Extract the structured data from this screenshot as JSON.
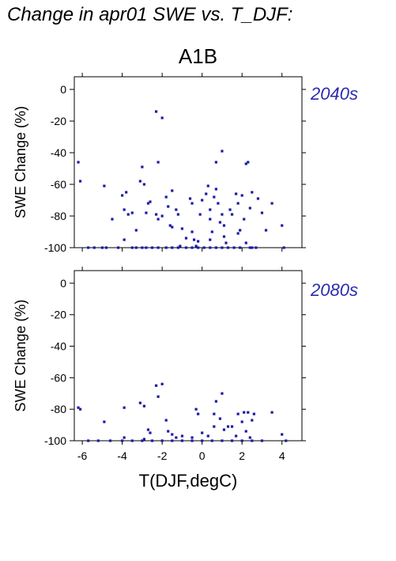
{
  "page": {
    "title": "Change in apr01 SWE vs. T_DJF:",
    "scenario": "A1B"
  },
  "chart_data": [
    {
      "type": "scatter",
      "panel_label": "2040s",
      "xlabel": "",
      "ylabel": "SWE Change (%)",
      "xlim": [
        -6.4,
        5.0
      ],
      "ylim": [
        -100,
        8
      ],
      "xticks": [
        -6,
        -4,
        -2,
        0,
        2,
        4
      ],
      "yticks": [
        0,
        -20,
        -40,
        -60,
        -80,
        -100
      ],
      "marker_color": "#1a1aa6",
      "points": [
        [
          -6.2,
          -46
        ],
        [
          -6.1,
          -58
        ],
        [
          -4.9,
          -61
        ],
        [
          -4.5,
          -82
        ],
        [
          -4.0,
          -67
        ],
        [
          -3.8,
          -65
        ],
        [
          -3.9,
          -76
        ],
        [
          -3.7,
          -79
        ],
        [
          -3.9,
          -95
        ],
        [
          -3.5,
          -78
        ],
        [
          -3.3,
          -89
        ],
        [
          -3.1,
          -58
        ],
        [
          -3.0,
          -49
        ],
        [
          -2.9,
          -60
        ],
        [
          -2.7,
          -72
        ],
        [
          -2.6,
          -71
        ],
        [
          -2.8,
          -78
        ],
        [
          -2.3,
          -14
        ],
        [
          -2.2,
          -46
        ],
        [
          -2.0,
          -18
        ],
        [
          -2.3,
          -79
        ],
        [
          -2.2,
          -82
        ],
        [
          -2.0,
          -80
        ],
        [
          -1.8,
          -68
        ],
        [
          -1.7,
          -74
        ],
        [
          -1.6,
          -86
        ],
        [
          -1.5,
          -87
        ],
        [
          -1.5,
          -64
        ],
        [
          -1.3,
          -76
        ],
        [
          -1.2,
          -79
        ],
        [
          -1.0,
          -88
        ],
        [
          -1.1,
          -99
        ],
        [
          -0.8,
          -94
        ],
        [
          -0.6,
          -69
        ],
        [
          -0.5,
          -72
        ],
        [
          -0.5,
          -90
        ],
        [
          -0.4,
          -95
        ],
        [
          -0.2,
          -96
        ],
        [
          -0.3,
          -99
        ],
        [
          -0.1,
          -79
        ],
        [
          0.0,
          -70
        ],
        [
          0.2,
          -66
        ],
        [
          0.3,
          -61
        ],
        [
          0.4,
          -76
        ],
        [
          0.4,
          -82
        ],
        [
          0.5,
          -90
        ],
        [
          0.4,
          -95
        ],
        [
          0.6,
          -68
        ],
        [
          0.7,
          -46
        ],
        [
          0.7,
          -63
        ],
        [
          0.8,
          -72
        ],
        [
          0.9,
          -84
        ],
        [
          1.0,
          -39
        ],
        [
          1.0,
          -79
        ],
        [
          1.1,
          -86
        ],
        [
          1.1,
          -93
        ],
        [
          1.2,
          -97
        ],
        [
          1.4,
          -76
        ],
        [
          1.5,
          -79
        ],
        [
          1.7,
          -66
        ],
        [
          1.8,
          -72
        ],
        [
          1.8,
          -91
        ],
        [
          1.9,
          -89
        ],
        [
          2.0,
          -67
        ],
        [
          2.1,
          -82
        ],
        [
          2.2,
          -97
        ],
        [
          2.2,
          -47
        ],
        [
          2.3,
          -46
        ],
        [
          2.4,
          -75
        ],
        [
          2.5,
          -65
        ],
        [
          2.5,
          -100
        ],
        [
          2.8,
          -69
        ],
        [
          3.0,
          -78
        ],
        [
          3.2,
          -89
        ],
        [
          3.5,
          -72
        ],
        [
          4.0,
          -86
        ],
        [
          4.1,
          -100
        ],
        [
          -5.7,
          -100
        ],
        [
          -5.4,
          -100
        ],
        [
          -5.0,
          -100
        ],
        [
          -4.8,
          -100
        ],
        [
          -4.2,
          -100
        ],
        [
          -3.5,
          -100
        ],
        [
          -3.3,
          -100
        ],
        [
          -3.0,
          -100
        ],
        [
          -2.8,
          -100
        ],
        [
          -2.5,
          -100
        ],
        [
          -2.2,
          -100
        ],
        [
          -1.8,
          -100
        ],
        [
          -1.5,
          -100
        ],
        [
          -1.2,
          -100
        ],
        [
          -0.8,
          -100
        ],
        [
          -0.5,
          -100
        ],
        [
          -0.2,
          -100
        ],
        [
          0.1,
          -100
        ],
        [
          0.4,
          -100
        ],
        [
          0.7,
          -100
        ],
        [
          1.0,
          -100
        ],
        [
          1.3,
          -100
        ],
        [
          1.6,
          -100
        ],
        [
          1.9,
          -100
        ],
        [
          2.4,
          -100
        ],
        [
          2.7,
          -100
        ]
      ]
    },
    {
      "type": "scatter",
      "panel_label": "2080s",
      "xlabel": "T(DJF,degC)",
      "ylabel": "SWE Change (%)",
      "xlim": [
        -6.4,
        5.0
      ],
      "ylim": [
        -100,
        8
      ],
      "xticks": [
        -6,
        -4,
        -2,
        0,
        2,
        4
      ],
      "yticks": [
        0,
        -20,
        -40,
        -60,
        -80,
        -100
      ],
      "marker_color": "#1a1aa6",
      "points": [
        [
          -6.2,
          -79
        ],
        [
          -6.1,
          -80
        ],
        [
          -4.9,
          -88
        ],
        [
          -3.9,
          -79
        ],
        [
          -3.9,
          -98
        ],
        [
          -3.1,
          -76
        ],
        [
          -2.9,
          -78
        ],
        [
          -2.9,
          -99
        ],
        [
          -2.7,
          -93
        ],
        [
          -2.3,
          -65
        ],
        [
          -2.2,
          -72
        ],
        [
          -2.0,
          -64
        ],
        [
          -2.6,
          -95
        ],
        [
          -1.8,
          -87
        ],
        [
          -1.7,
          -94
        ],
        [
          -1.5,
          -96
        ],
        [
          -1.3,
          -98
        ],
        [
          -1.0,
          -97
        ],
        [
          -0.5,
          -98
        ],
        [
          -0.3,
          -80
        ],
        [
          -0.2,
          -83
        ],
        [
          0.0,
          -95
        ],
        [
          0.3,
          -97
        ],
        [
          0.6,
          -91
        ],
        [
          0.6,
          -83
        ],
        [
          0.7,
          -75
        ],
        [
          0.9,
          -86
        ],
        [
          1.0,
          -70
        ],
        [
          1.1,
          -93
        ],
        [
          1.3,
          -91
        ],
        [
          1.5,
          -91
        ],
        [
          1.7,
          -97
        ],
        [
          1.8,
          -83
        ],
        [
          2.0,
          -88
        ],
        [
          2.1,
          -82
        ],
        [
          2.2,
          -94
        ],
        [
          2.3,
          -82
        ],
        [
          2.4,
          -98
        ],
        [
          2.5,
          -87
        ],
        [
          2.6,
          -83
        ],
        [
          3.5,
          -82
        ],
        [
          4.0,
          -96
        ],
        [
          -5.7,
          -100
        ],
        [
          -5.2,
          -100
        ],
        [
          -4.6,
          -100
        ],
        [
          -4.0,
          -100
        ],
        [
          -3.5,
          -100
        ],
        [
          -3.0,
          -100
        ],
        [
          -2.5,
          -100
        ],
        [
          -2.0,
          -100
        ],
        [
          -1.5,
          -100
        ],
        [
          -1.0,
          -100
        ],
        [
          -0.5,
          -100
        ],
        [
          0.0,
          -100
        ],
        [
          0.5,
          -100
        ],
        [
          1.0,
          -100
        ],
        [
          1.5,
          -100
        ],
        [
          2.0,
          -100
        ],
        [
          2.5,
          -100
        ],
        [
          3.0,
          -100
        ],
        [
          4.2,
          -100
        ]
      ]
    }
  ]
}
